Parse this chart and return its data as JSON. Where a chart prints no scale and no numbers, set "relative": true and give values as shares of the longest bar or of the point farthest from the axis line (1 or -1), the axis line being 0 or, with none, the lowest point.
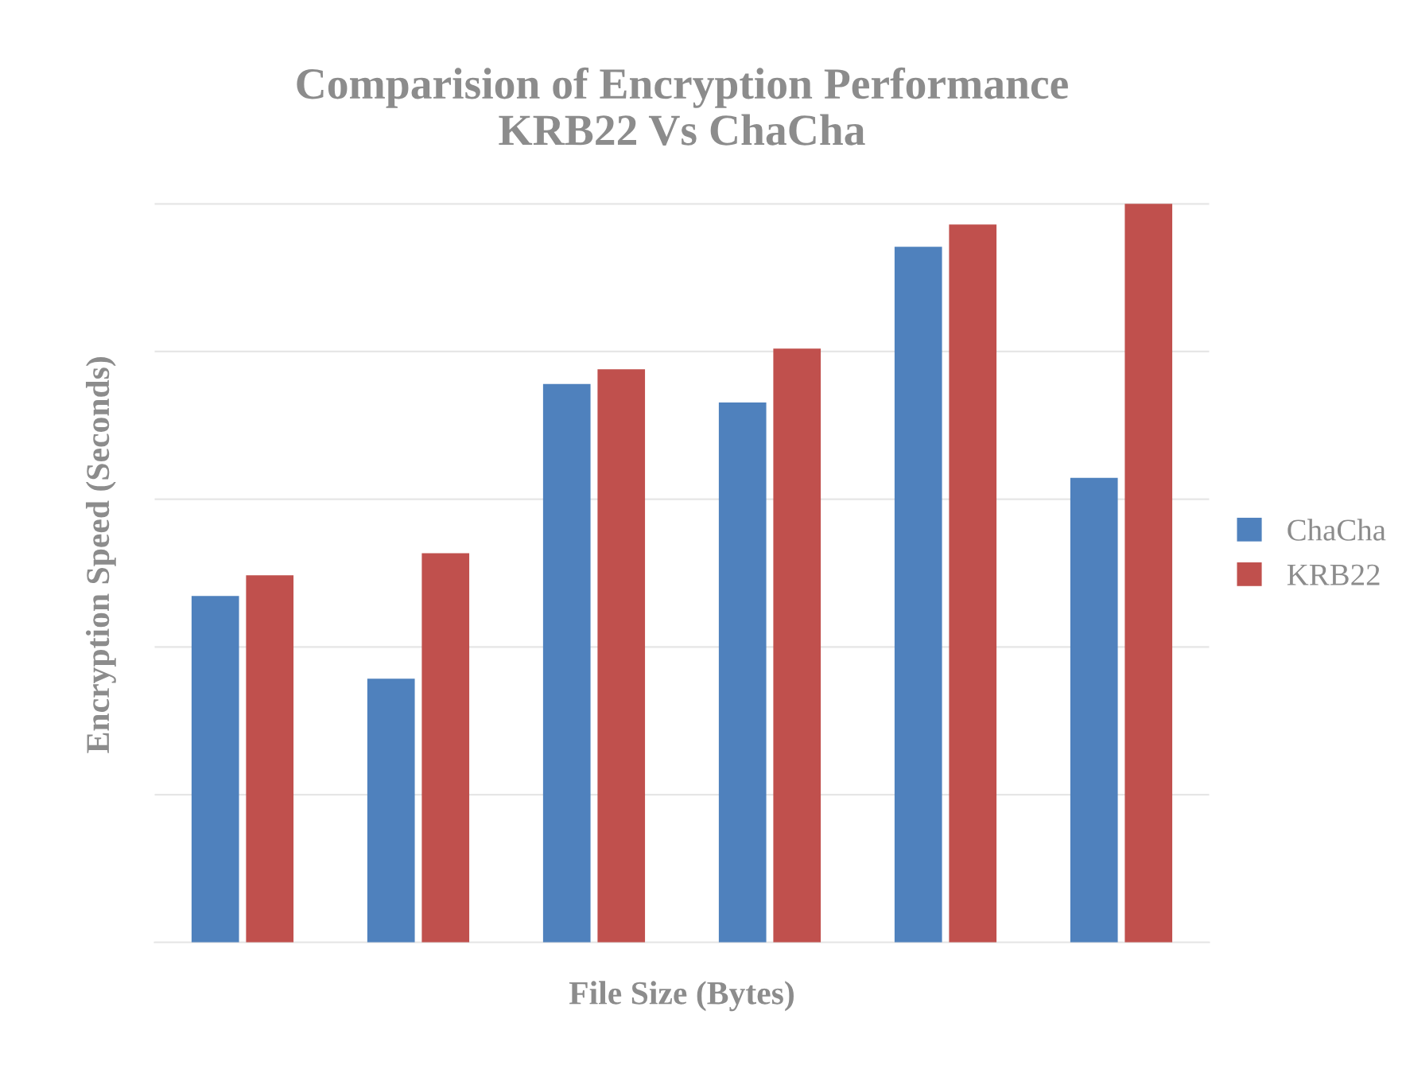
{
  "chart_data": {
    "type": "bar",
    "title": "Comparision of Encryption Performance\nKRB22 Vs ChaCha",
    "xlabel": "File Size (Bytes)",
    "ylabel": "Encryption Speed (Seconds)",
    "relative": true,
    "categories": [
      null,
      null,
      null,
      null,
      null,
      null
    ],
    "series": [
      {
        "name": "ChaCha",
        "color": "#4f81bd",
        "values": [
          0.469,
          0.357,
          0.756,
          0.731,
          0.942,
          0.629
        ]
      },
      {
        "name": "KRB22",
        "color": "#c0504d",
        "values": [
          0.497,
          0.527,
          0.776,
          0.804,
          0.972,
          1
        ]
      }
    ],
    "grid": "y",
    "legend": "right"
  }
}
